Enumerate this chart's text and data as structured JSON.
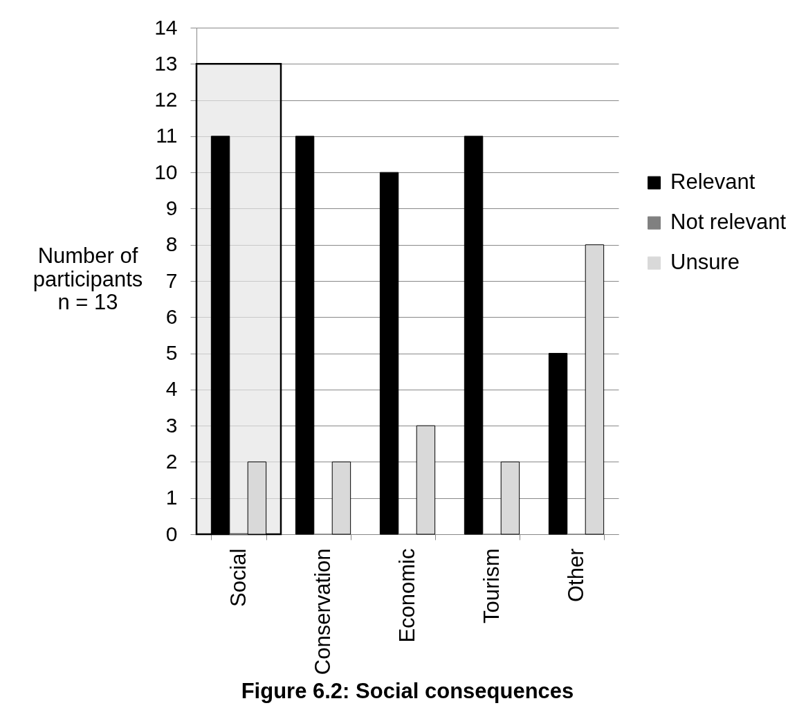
{
  "chart_data": {
    "type": "bar",
    "title": "Figure 6.2: Social consequences",
    "ylabel": "Number of\nparticipants\nn = 13",
    "categories": [
      "Social",
      "Conservation",
      "Economic",
      "Tourism",
      "Other"
    ],
    "series": [
      {
        "color": "#e6e6e6",
        "x": [
          "Social"
        ],
        "values": [
          13
        ]
      },
      {
        "name": "Relevant",
        "color": "#000000",
        "values": [
          11,
          11,
          10,
          11,
          5
        ]
      },
      {
        "name": "Not relevant",
        "color": "#808080",
        "values": [
          0,
          0,
          0,
          0,
          0
        ]
      },
      {
        "name": "Unsure",
        "color": "#d9d9d9",
        "values": [
          2,
          2,
          3,
          2,
          8
        ]
      }
    ],
    "ylim": [
      0,
      14
    ],
    "yticks": [
      0,
      1,
      2,
      3,
      4,
      5,
      6,
      7,
      8,
      9,
      10,
      11,
      12,
      13,
      14
    ],
    "grid": "y",
    "legend": "right"
  }
}
